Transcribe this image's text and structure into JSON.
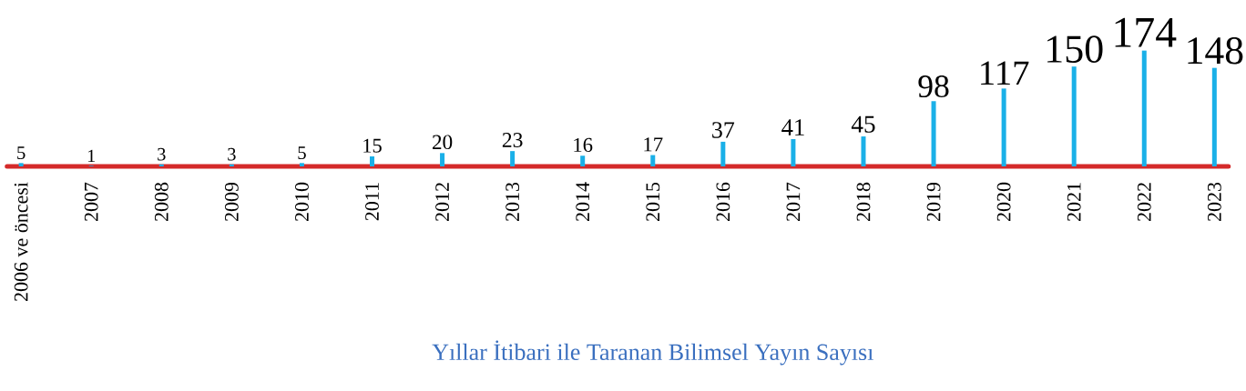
{
  "chart_data": {
    "type": "bar",
    "categories": [
      "2006 ve öncesi",
      "2007",
      "2008",
      "2009",
      "2010",
      "2011",
      "2012",
      "2013",
      "2014",
      "2015",
      "2016",
      "2017",
      "2018",
      "2019",
      "2020",
      "2021",
      "2022",
      "2023"
    ],
    "values": [
      5,
      1,
      3,
      3,
      5,
      15,
      20,
      23,
      16,
      17,
      37,
      41,
      45,
      98,
      117,
      150,
      174,
      148
    ],
    "data_labels": true,
    "color": "#1ab0e8",
    "annotations": [
      "Yıllar İtibari ile Taranan Bilimsel Yayın Sayısı"
    ]
  }
}
